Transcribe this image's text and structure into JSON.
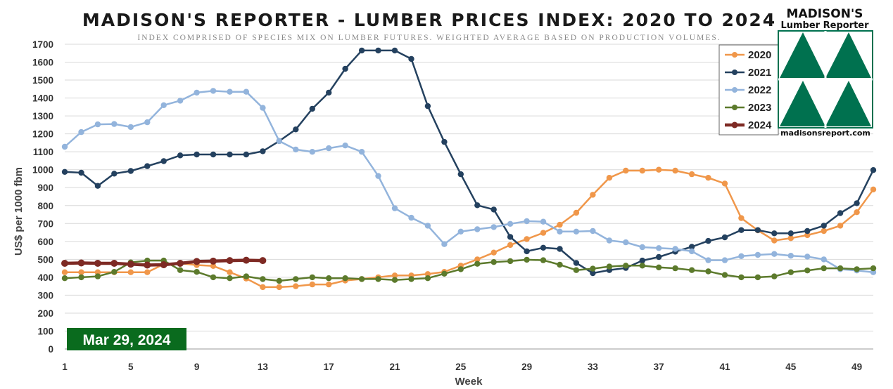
{
  "header": {
    "title": "MADISON'S REPORTER - LUMBER PRICES INDEX: 2020 TO 2024",
    "subtitle": "INDEX COMPRISED OF SPECIES MIX ON LUMBER FUTURES. WEIGHTED AVERAGE BASED ON PRODUCTION VOLUMES."
  },
  "logo": {
    "line1": "MADISON'S",
    "line2": "Lumber Reporter",
    "url": "madisonsreport.com",
    "color": "#00714f"
  },
  "date_badge": {
    "text": "Mar 29, 2024",
    "color": "#0a6b1e"
  },
  "chart_data": {
    "type": "line",
    "xlabel": "Week",
    "ylabel": "US$ per 1000 fbm",
    "xlim": [
      1,
      50
    ],
    "ylim": [
      0,
      1700
    ],
    "y_ticks": [
      0,
      100,
      200,
      300,
      400,
      500,
      600,
      700,
      800,
      900,
      1000,
      1100,
      1200,
      1300,
      1400,
      1500,
      1600,
      1700
    ],
    "x_ticks": [
      1,
      5,
      9,
      13,
      17,
      21,
      25,
      29,
      33,
      37,
      41,
      45,
      49
    ],
    "grid": "horizontal",
    "legend_position": "top-right",
    "series": [
      {
        "name": "2020",
        "color": "#f0974a",
        "width": 2.5,
        "start_week": 1,
        "values": [
          428,
          428,
          428,
          428,
          428,
          428,
          473,
          478,
          468,
          463,
          428,
          393,
          345,
          345,
          350,
          360,
          360,
          382,
          390,
          400,
          410,
          410,
          418,
          430,
          465,
          500,
          538,
          580,
          613,
          648,
          693,
          760,
          860,
          955,
          995,
          995,
          1000,
          995,
          975,
          955,
          923,
          730,
          662,
          605,
          618,
          635,
          658,
          688,
          763,
          890
        ]
      },
      {
        "name": "2021",
        "color": "#24415f",
        "width": 2.5,
        "start_week": 1,
        "values": [
          988,
          983,
          910,
          978,
          993,
          1020,
          1048,
          1080,
          1085,
          1085,
          1085,
          1085,
          1103,
          1160,
          1225,
          1340,
          1430,
          1563,
          1665,
          1665,
          1665,
          1618,
          1355,
          1155,
          975,
          802,
          778,
          625,
          545,
          565,
          558,
          480,
          423,
          440,
          452,
          493,
          513,
          543,
          570,
          603,
          623,
          663,
          663,
          645,
          645,
          658,
          688,
          758,
          813,
          998
        ]
      },
      {
        "name": "2022",
        "color": "#93b4dc",
        "width": 2.5,
        "start_week": 1,
        "values": [
          1128,
          1210,
          1253,
          1255,
          1238,
          1265,
          1360,
          1385,
          1430,
          1440,
          1435,
          1435,
          1345,
          1160,
          1113,
          1100,
          1120,
          1135,
          1100,
          965,
          785,
          732,
          688,
          585,
          655,
          668,
          680,
          698,
          713,
          710,
          655,
          655,
          658,
          605,
          595,
          568,
          563,
          558,
          545,
          495,
          495,
          518,
          525,
          530,
          520,
          515,
          500,
          445,
          438,
          428
        ]
      },
      {
        "name": "2023",
        "color": "#5c7a2c",
        "width": 2.5,
        "start_week": 1,
        "values": [
          395,
          400,
          405,
          430,
          483,
          493,
          493,
          440,
          430,
          400,
          395,
          405,
          390,
          380,
          390,
          400,
          395,
          395,
          390,
          390,
          385,
          390,
          395,
          420,
          445,
          475,
          485,
          490,
          498,
          495,
          470,
          440,
          448,
          460,
          465,
          465,
          455,
          450,
          440,
          433,
          413,
          400,
          400,
          405,
          428,
          438,
          450,
          450,
          445,
          450
        ]
      },
      {
        "name": "2024",
        "color": "#7e2a24",
        "width": 4.5,
        "start_week": 1,
        "values": [
          478,
          480,
          478,
          478,
          473,
          468,
          470,
          478,
          488,
          490,
          493,
          495,
          493
        ]
      }
    ]
  }
}
